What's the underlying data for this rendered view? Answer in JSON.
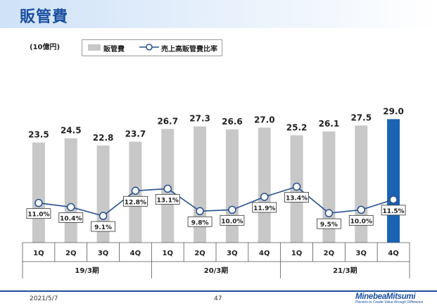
{
  "header": {
    "title": "販管費"
  },
  "unit_label": "(10億円)",
  "legend": {
    "bar_label": "販管費",
    "line_label": "売上高販管費比率"
  },
  "footer": {
    "date": "2021/5/7",
    "page": "47"
  },
  "brand": {
    "name": "MinebeaMitsumi",
    "tagline": "Passion to Create Value through Difference"
  },
  "colors": {
    "title": "#1b4fa0",
    "bar": "#c8c8c8",
    "highlight_bar": "#1b63b3",
    "line": "#24508f"
  },
  "chart_data": {
    "type": "bar",
    "categories": [
      "1Q",
      "2Q",
      "3Q",
      "4Q",
      "1Q",
      "2Q",
      "3Q",
      "4Q",
      "1Q",
      "2Q",
      "3Q",
      "4Q"
    ],
    "groups": [
      {
        "label": "19/3期",
        "quarters": 4
      },
      {
        "label": "20/3期",
        "quarters": 4
      },
      {
        "label": "21/3期",
        "quarters": 4
      }
    ],
    "series": [
      {
        "name": "販管費",
        "type": "bar",
        "values": [
          23.5,
          24.5,
          22.8,
          23.7,
          26.7,
          27.3,
          26.6,
          27.0,
          25.2,
          26.1,
          27.5,
          29.0
        ],
        "labels": [
          "23.5",
          "24.5",
          "22.8",
          "23.7",
          "26.7",
          "27.3",
          "26.6",
          "27.0",
          "25.2",
          "26.1",
          "27.5",
          "29.0"
        ],
        "highlight_index": 11
      },
      {
        "name": "売上高販管費比率",
        "type": "line",
        "values": [
          11.0,
          10.4,
          9.1,
          12.8,
          13.1,
          9.8,
          10.0,
          11.9,
          13.4,
          9.5,
          10.0,
          11.5
        ],
        "labels": [
          "11.0%",
          "10.4%",
          "9.1%",
          "12.8%",
          "13.1%",
          "9.8%",
          "10.0%",
          "11.9%",
          "13.4%",
          "9.5%",
          "10.0%",
          "11.5%"
        ]
      }
    ],
    "ylim_bar": [
      0,
      36
    ],
    "ylim_line": [
      0,
      30
    ],
    "legend_position": "top-left"
  }
}
